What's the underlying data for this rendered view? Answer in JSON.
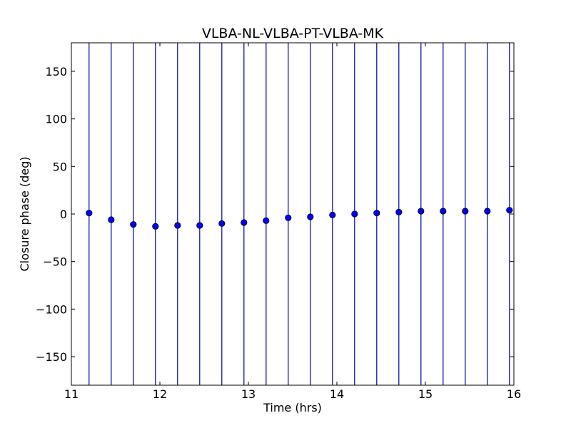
{
  "chart_data": {
    "type": "scatter",
    "title": "VLBA-NL-VLBA-PT-VLBA-MK",
    "xlabel": "Time (hrs)",
    "ylabel": "Closure phase (deg)",
    "xlim": [
      11,
      16
    ],
    "ylim": [
      -180,
      180
    ],
    "xticks": [
      11,
      12,
      13,
      14,
      15,
      16
    ],
    "xtick_labels": [
      "11",
      "12",
      "13",
      "14",
      "15",
      "16"
    ],
    "yticks": [
      -150,
      -100,
      -50,
      0,
      50,
      100,
      150
    ],
    "ytick_labels": [
      "−150",
      "−100",
      "−50",
      "0",
      "50",
      "100",
      "150"
    ],
    "grid": false,
    "marker_color": "#0000ff",
    "errorbar_color": "#0000aa",
    "series": [
      {
        "x": [
          11.2,
          11.45,
          11.7,
          11.95,
          12.2,
          12.45,
          12.7,
          12.95,
          13.2,
          13.45,
          13.7,
          13.95,
          14.2,
          14.45,
          14.7,
          14.95,
          15.2,
          15.45,
          15.7,
          15.95
        ],
        "y": [
          1,
          -6,
          -11,
          -13,
          -12,
          -12,
          -10,
          -9,
          -7,
          -4,
          -3,
          -1,
          0,
          1,
          2,
          3,
          3,
          3,
          3,
          4
        ],
        "error_low": [
          -180,
          -180,
          -180,
          -180,
          -180,
          -180,
          -180,
          -180,
          -180,
          -180,
          -180,
          -180,
          -180,
          -180,
          -180,
          -180,
          -180,
          -180,
          -180,
          -180
        ],
        "error_high": [
          180,
          180,
          180,
          180,
          180,
          180,
          180,
          180,
          180,
          180,
          180,
          180,
          180,
          180,
          180,
          180,
          180,
          180,
          180,
          180
        ]
      }
    ]
  }
}
